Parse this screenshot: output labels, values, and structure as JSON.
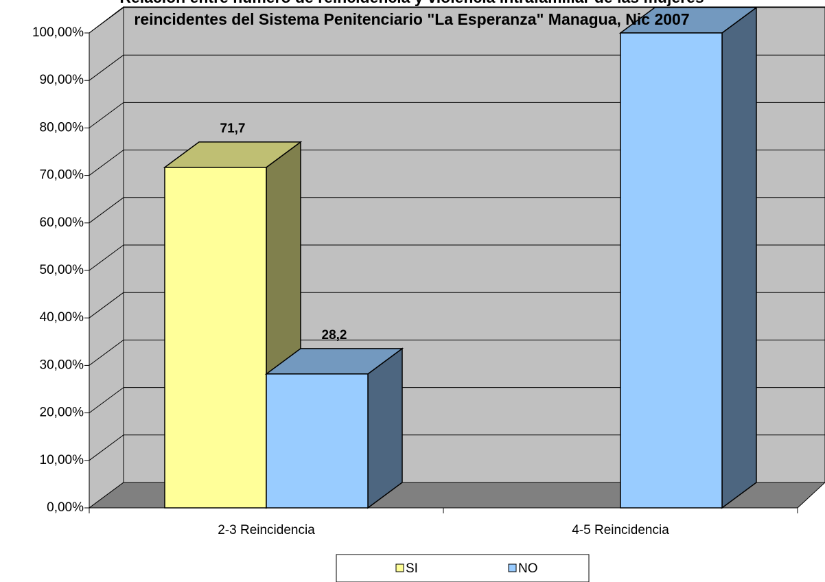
{
  "chart_data": {
    "type": "bar3d",
    "title": [
      "Relación entre número de reincidencia y violencia intrafamiliar de las mujeres",
      "reincidentes del Sistema Penitenciario \"La Esperanza\" Managua, Nic 2007"
    ],
    "categories": [
      "2-3 Reincidencia",
      "4-5 Reincidencia"
    ],
    "series": [
      {
        "name": "SI",
        "color": "#ffff99",
        "values": [
          71.7,
          0
        ],
        "value_labels": [
          "71,7",
          null
        ]
      },
      {
        "name": "NO",
        "color": "#99ccff",
        "values": [
          28.2,
          100
        ],
        "value_labels": [
          "28,2",
          null
        ]
      }
    ],
    "ylim": [
      0,
      100
    ],
    "yticks": [
      {
        "value": 0,
        "label": "0,00%"
      },
      {
        "value": 10,
        "label": "10,00%"
      },
      {
        "value": 20,
        "label": "20,00%"
      },
      {
        "value": 30,
        "label": "30,00%"
      },
      {
        "value": 40,
        "label": "40,00%"
      },
      {
        "value": 50,
        "label": "50,00%"
      },
      {
        "value": 60,
        "label": "60,00%"
      },
      {
        "value": 70,
        "label": "70,00%"
      },
      {
        "value": 80,
        "label": "80,00%"
      },
      {
        "value": 90,
        "label": "90,00%"
      },
      {
        "value": 100,
        "label": "100,00%"
      }
    ],
    "grid": true,
    "legend": "bottom"
  }
}
